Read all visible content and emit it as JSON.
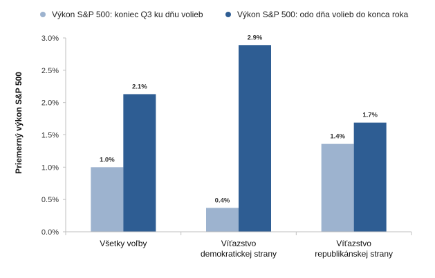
{
  "chart_data": {
    "type": "bar",
    "ylabel": "Priemerný výkon S&P 500",
    "ylim": [
      0,
      3.0
    ],
    "yticks": [
      "0.0%",
      "0.5%",
      "1.0%",
      "1.5%",
      "2.0%",
      "2.5%",
      "3.0%"
    ],
    "categories": [
      [
        "Všetky voľby"
      ],
      [
        "Víťazstvo",
        "demokratickej strany"
      ],
      [
        "Víťazstvo",
        "republikánskej strany"
      ]
    ],
    "series": [
      {
        "name": "Výkon S&P 500: koniec Q3 ku dňu volieb",
        "color": "#9db3cf",
        "values": [
          1.0,
          0.37,
          1.36
        ],
        "labels": [
          "1.0%",
          "0.4%",
          "1.4%"
        ]
      },
      {
        "name": "Výkon S&P 500: odo dňa volieb do konca roka",
        "color": "#2e5d93",
        "values": [
          2.13,
          2.89,
          1.69
        ],
        "labels": [
          "2.1%",
          "2.9%",
          "1.7%"
        ]
      }
    ],
    "legend": "top",
    "grid": false
  }
}
